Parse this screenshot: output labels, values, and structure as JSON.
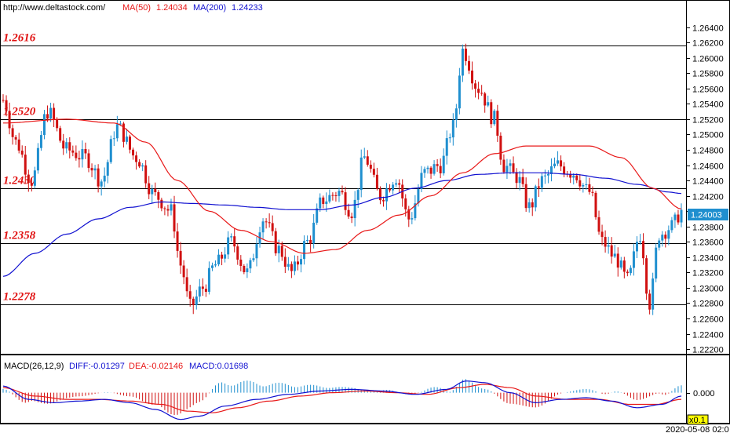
{
  "header": {
    "site": "http://www.deltastock.com/",
    "ma50_label": "MA(50)",
    "ma50_value": "1.24034",
    "ma200_label": "MA(200)",
    "ma200_value": "1.24233"
  },
  "macd_header": {
    "label": "MACD(26,12,9)",
    "diff": "DIFF:-0.01297",
    "dea": "DEA:-0.02146",
    "macd": "MACD:0.01698"
  },
  "current_price_label": "1.24003",
  "macd_zero_label": "0.000",
  "zoom_label": "x0.1",
  "timestamp": "2020-05-08 02:0",
  "colors": {
    "bull": "#1f8fcf",
    "bear": "#d01010",
    "ma50": "#e81818",
    "ma200": "#1010d0",
    "level": "#000000",
    "level_text": "#e01010",
    "price_box": "#1f8fcf",
    "diff_line": "#1010d0",
    "dea_line": "#e81818",
    "hist_pos": "#1f8fcf",
    "hist_neg": "#d01010"
  },
  "chart_data": {
    "type": "candlestick",
    "ylim": [
      1.2215,
      1.2655
    ],
    "y_ticks": [
      "1.22200",
      "1.22400",
      "1.22600",
      "1.22800",
      "1.23000",
      "1.23200",
      "1.23400",
      "1.23600",
      "1.23800",
      "1.24000",
      "1.24200",
      "1.24400",
      "1.24600",
      "1.24800",
      "1.25000",
      "1.25200",
      "1.25400",
      "1.25600",
      "1.25800",
      "1.26000",
      "1.26200",
      "1.26400"
    ],
    "levels": [
      {
        "label": "1.2616",
        "value": 1.2616
      },
      {
        "label": "1.2520",
        "value": 1.252
      },
      {
        "label": "1.2430",
        "value": 1.243
      },
      {
        "label": "1.2358",
        "value": 1.2358
      },
      {
        "label": "1.2278",
        "value": 1.2278
      }
    ],
    "price_anchors": [
      [
        0,
        1.2545
      ],
      [
        4,
        1.249
      ],
      [
        9,
        1.244
      ],
      [
        14,
        1.253
      ],
      [
        20,
        1.248
      ],
      [
        26,
        1.247
      ],
      [
        31,
        1.244
      ],
      [
        36,
        1.251
      ],
      [
        42,
        1.247
      ],
      [
        48,
        1.242
      ],
      [
        53,
        1.24
      ],
      [
        56,
        1.233
      ],
      [
        59,
        1.2275
      ],
      [
        63,
        1.23
      ],
      [
        67,
        1.233
      ],
      [
        72,
        1.236
      ],
      [
        77,
        1.232
      ],
      [
        82,
        1.239
      ],
      [
        87,
        1.235
      ],
      [
        91,
        1.232
      ],
      [
        96,
        1.236
      ],
      [
        101,
        1.2415
      ],
      [
        106,
        1.2425
      ],
      [
        110,
        1.24
      ],
      [
        114,
        1.247
      ],
      [
        119,
        1.242
      ],
      [
        124,
        1.2445
      ],
      [
        128,
        1.239
      ],
      [
        133,
        1.245
      ],
      [
        138,
        1.246
      ],
      [
        142,
        1.251
      ],
      [
        145,
        1.261
      ],
      [
        150,
        1.256
      ],
      [
        155,
        1.252
      ],
      [
        158,
        1.246
      ],
      [
        162,
        1.2445
      ],
      [
        166,
        1.2405
      ],
      [
        170,
        1.244
      ],
      [
        175,
        1.246
      ],
      [
        180,
        1.245
      ],
      [
        185,
        1.2425
      ],
      [
        189,
        1.236
      ],
      [
        193,
        1.234
      ],
      [
        197,
        1.231
      ],
      [
        201,
        1.237
      ],
      [
        204,
        1.228
      ],
      [
        207,
        1.237
      ],
      [
        211,
        1.238
      ],
      [
        214,
        1.24
      ]
    ],
    "ma50": [
      [
        0,
        1.2515
      ],
      [
        20,
        1.252
      ],
      [
        35,
        1.2515
      ],
      [
        45,
        1.249
      ],
      [
        55,
        1.244
      ],
      [
        65,
        1.24
      ],
      [
        75,
        1.2375
      ],
      [
        85,
        1.236
      ],
      [
        95,
        1.2345
      ],
      [
        105,
        1.235
      ],
      [
        115,
        1.2375
      ],
      [
        125,
        1.2395
      ],
      [
        135,
        1.242
      ],
      [
        145,
        1.245
      ],
      [
        155,
        1.2475
      ],
      [
        165,
        1.2485
      ],
      [
        175,
        1.2485
      ],
      [
        185,
        1.2485
      ],
      [
        195,
        1.247
      ],
      [
        205,
        1.243
      ],
      [
        214,
        1.2403
      ]
    ],
    "ma200": [
      [
        0,
        1.2315
      ],
      [
        10,
        1.2345
      ],
      [
        20,
        1.237
      ],
      [
        30,
        1.239
      ],
      [
        40,
        1.2405
      ],
      [
        50,
        1.2412
      ],
      [
        60,
        1.241
      ],
      [
        70,
        1.2408
      ],
      [
        80,
        1.2405
      ],
      [
        90,
        1.2402
      ],
      [
        100,
        1.2402
      ],
      [
        110,
        1.2408
      ],
      [
        120,
        1.2418
      ],
      [
        130,
        1.243
      ],
      [
        140,
        1.244
      ],
      [
        150,
        1.2448
      ],
      [
        160,
        1.245
      ],
      [
        170,
        1.245
      ],
      [
        180,
        1.2448
      ],
      [
        190,
        1.2443
      ],
      [
        200,
        1.2435
      ],
      [
        210,
        1.2425
      ],
      [
        214,
        1.2423
      ]
    ],
    "macd_ylim": [
      -0.018,
      0.012
    ],
    "macd_diff": [
      [
        0,
        0.004
      ],
      [
        8,
        -0.004
      ],
      [
        16,
        -0.006
      ],
      [
        24,
        -0.005
      ],
      [
        32,
        -0.004
      ],
      [
        40,
        -0.006
      ],
      [
        48,
        -0.01
      ],
      [
        56,
        -0.016
      ],
      [
        62,
        -0.014
      ],
      [
        70,
        -0.008
      ],
      [
        80,
        -0.004
      ],
      [
        90,
        -0.001
      ],
      [
        100,
        0.001
      ],
      [
        110,
        0.002
      ],
      [
        120,
        0.001
      ],
      [
        130,
        -0.001
      ],
      [
        140,
        0.002
      ],
      [
        146,
        0.007
      ],
      [
        152,
        0.006
      ],
      [
        160,
        0.0
      ],
      [
        168,
        -0.006
      ],
      [
        176,
        -0.004
      ],
      [
        184,
        -0.003
      ],
      [
        192,
        -0.005
      ],
      [
        200,
        -0.009
      ],
      [
        208,
        -0.007
      ],
      [
        214,
        -0.002
      ]
    ],
    "macd_dea": [
      [
        0,
        0.003
      ],
      [
        10,
        -0.002
      ],
      [
        20,
        -0.004
      ],
      [
        30,
        -0.004
      ],
      [
        40,
        -0.005
      ],
      [
        50,
        -0.007
      ],
      [
        58,
        -0.011
      ],
      [
        66,
        -0.012
      ],
      [
        74,
        -0.009
      ],
      [
        84,
        -0.005
      ],
      [
        94,
        -0.002
      ],
      [
        104,
        0.0
      ],
      [
        114,
        0.001
      ],
      [
        124,
        0.0
      ],
      [
        134,
        -0.001
      ],
      [
        144,
        0.003
      ],
      [
        152,
        0.005
      ],
      [
        160,
        0.003
      ],
      [
        168,
        -0.002
      ],
      [
        178,
        -0.004
      ],
      [
        188,
        -0.004
      ],
      [
        198,
        -0.007
      ],
      [
        206,
        -0.007
      ],
      [
        214,
        -0.004
      ]
    ]
  }
}
